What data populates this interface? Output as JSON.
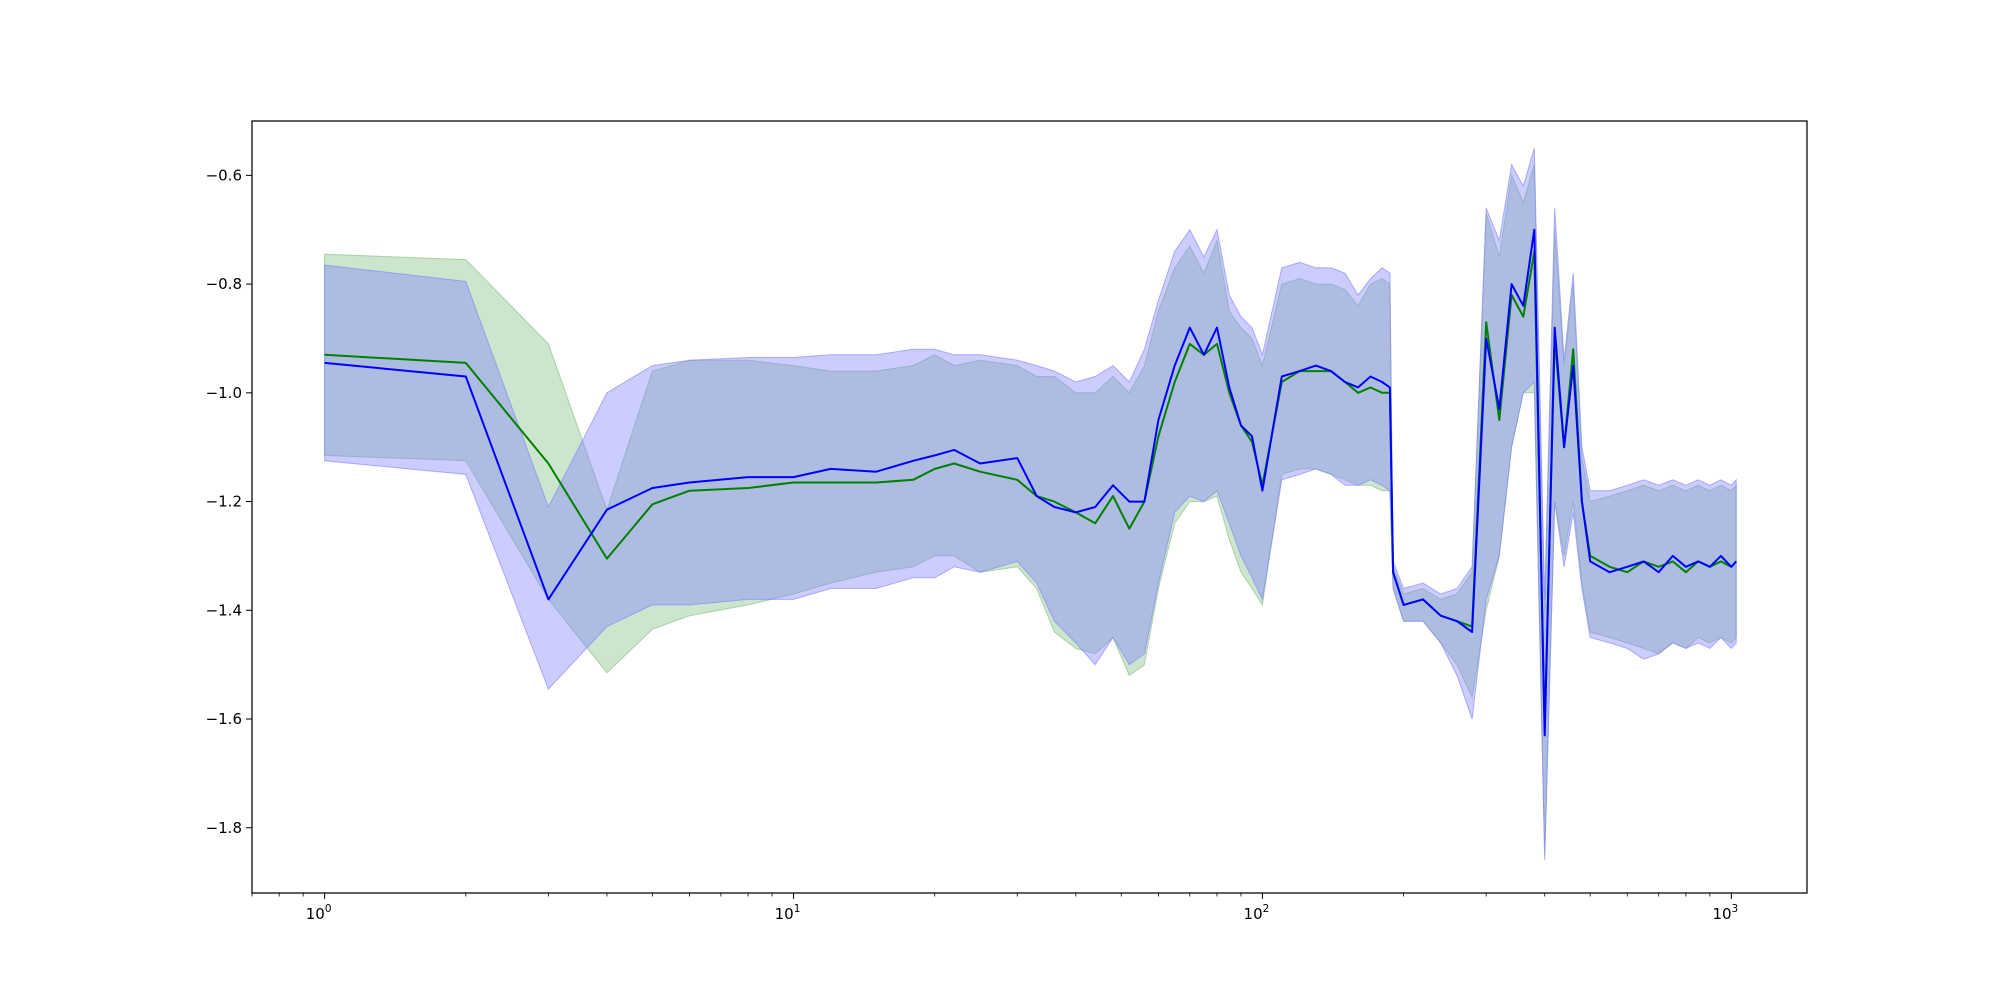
{
  "chart_data": {
    "type": "line",
    "title": "",
    "xlabel": "",
    "ylabel": "",
    "x_scale": "log",
    "xlim": [
      0.7,
      1450
    ],
    "ylim": [
      -1.92,
      -0.5
    ],
    "grid": false,
    "legend": null,
    "x_ticks": [
      {
        "value": 1,
        "base": "10",
        "exp": "0"
      },
      {
        "value": 10,
        "base": "10",
        "exp": "1"
      },
      {
        "value": 100,
        "base": "10",
        "exp": "2"
      },
      {
        "value": 1000,
        "base": "10",
        "exp": "3"
      }
    ],
    "y_ticks": [
      {
        "value": -0.6,
        "label": "−0.6"
      },
      {
        "value": -0.8,
        "label": "−0.8"
      },
      {
        "value": -1.0,
        "label": "−1.0"
      },
      {
        "value": -1.2,
        "label": "−1.2"
      },
      {
        "value": -1.4,
        "label": "−1.4"
      },
      {
        "value": -1.6,
        "label": "−1.6"
      },
      {
        "value": -1.8,
        "label": "−1.8"
      }
    ],
    "series": [
      {
        "color": "#008000",
        "band_color": "#7fbf7f",
        "band_opacity": 0.4,
        "x": [
          1,
          2,
          3,
          4,
          5,
          6,
          8,
          10,
          12,
          15,
          18,
          20,
          22,
          25,
          30,
          33,
          36,
          40,
          44,
          48,
          52,
          56,
          60,
          65,
          70,
          75,
          80,
          85,
          90,
          95,
          100,
          110,
          120,
          130,
          140,
          150,
          160,
          170,
          180,
          187,
          190,
          200,
          220,
          240,
          260,
          280,
          300,
          320,
          340,
          360,
          380,
          400,
          420,
          440,
          460,
          480,
          500,
          550,
          600,
          650,
          700,
          750,
          800,
          850,
          900,
          950,
          1000,
          1024
        ],
        "mean": [
          -0.93,
          -0.945,
          -1.13,
          -1.305,
          -1.205,
          -1.18,
          -1.175,
          -1.165,
          -1.165,
          -1.165,
          -1.16,
          -1.14,
          -1.13,
          -1.145,
          -1.16,
          -1.19,
          -1.2,
          -1.22,
          -1.24,
          -1.19,
          -1.25,
          -1.2,
          -1.08,
          -0.98,
          -0.91,
          -0.93,
          -0.91,
          -1.0,
          -1.06,
          -1.09,
          -1.17,
          -0.98,
          -0.96,
          -0.96,
          -0.96,
          -0.98,
          -1.0,
          -0.99,
          -1.0,
          -1.0,
          -1.33,
          -1.39,
          -1.38,
          -1.41,
          -1.42,
          -1.43,
          -0.87,
          -1.05,
          -0.82,
          -0.86,
          -0.74,
          -1.62,
          -0.9,
          -1.1,
          -0.92,
          -1.2,
          -1.3,
          -1.32,
          -1.33,
          -1.31,
          -1.32,
          -1.31,
          -1.33,
          -1.31,
          -1.32,
          -1.31,
          -1.32,
          -1.31
        ],
        "lower": [
          -1.115,
          -1.125,
          -1.38,
          -1.515,
          -1.435,
          -1.41,
          -1.39,
          -1.37,
          -1.35,
          -1.33,
          -1.32,
          -1.3,
          -1.3,
          -1.33,
          -1.32,
          -1.36,
          -1.44,
          -1.47,
          -1.48,
          -1.45,
          -1.52,
          -1.5,
          -1.36,
          -1.24,
          -1.2,
          -1.2,
          -1.19,
          -1.27,
          -1.33,
          -1.36,
          -1.39,
          -1.15,
          -1.14,
          -1.14,
          -1.15,
          -1.16,
          -1.17,
          -1.17,
          -1.18,
          -1.18,
          -1.36,
          -1.42,
          -1.42,
          -1.46,
          -1.5,
          -1.56,
          -1.4,
          -1.3,
          -1.1,
          -1.0,
          -1.0,
          -1.85,
          -1.2,
          -1.3,
          -1.2,
          -1.35,
          -1.44,
          -1.45,
          -1.46,
          -1.47,
          -1.48,
          -1.46,
          -1.47,
          -1.45,
          -1.46,
          -1.45,
          -1.46,
          -1.45
        ],
        "upper": [
          -0.745,
          -0.755,
          -0.91,
          -1.215,
          -0.96,
          -0.94,
          -0.94,
          -0.95,
          -0.96,
          -0.96,
          -0.95,
          -0.93,
          -0.95,
          -0.94,
          -0.95,
          -0.97,
          -0.97,
          -1.0,
          -1.0,
          -0.97,
          -1.0,
          -0.95,
          -0.85,
          -0.77,
          -0.73,
          -0.78,
          -0.72,
          -0.85,
          -0.88,
          -0.9,
          -0.95,
          -0.8,
          -0.79,
          -0.8,
          -0.8,
          -0.81,
          -0.84,
          -0.8,
          -0.79,
          -0.8,
          -1.32,
          -1.37,
          -1.36,
          -1.38,
          -1.37,
          -1.33,
          -0.67,
          -0.75,
          -0.6,
          -0.65,
          -0.58,
          -1.4,
          -0.7,
          -0.95,
          -0.8,
          -1.12,
          -1.2,
          -1.19,
          -1.18,
          -1.17,
          -1.18,
          -1.17,
          -1.18,
          -1.17,
          -1.18,
          -1.17,
          -1.18,
          -1.17
        ]
      },
      {
        "color": "#0000ff",
        "band_color": "#7f7fff",
        "band_opacity": 0.4,
        "x": [
          1,
          2,
          3,
          4,
          5,
          6,
          8,
          10,
          12,
          15,
          18,
          20,
          22,
          25,
          30,
          33,
          36,
          40,
          44,
          48,
          52,
          56,
          60,
          65,
          70,
          75,
          80,
          85,
          90,
          95,
          100,
          110,
          120,
          130,
          140,
          150,
          160,
          170,
          180,
          187,
          190,
          200,
          220,
          240,
          260,
          280,
          300,
          320,
          340,
          360,
          380,
          400,
          420,
          440,
          460,
          480,
          500,
          550,
          600,
          650,
          700,
          750,
          800,
          850,
          900,
          950,
          1000,
          1024
        ],
        "mean": [
          -0.945,
          -0.97,
          -1.38,
          -1.215,
          -1.175,
          -1.165,
          -1.155,
          -1.155,
          -1.14,
          -1.145,
          -1.125,
          -1.115,
          -1.105,
          -1.13,
          -1.12,
          -1.19,
          -1.21,
          -1.22,
          -1.21,
          -1.17,
          -1.2,
          -1.2,
          -1.05,
          -0.95,
          -0.88,
          -0.93,
          -0.88,
          -0.99,
          -1.06,
          -1.08,
          -1.18,
          -0.97,
          -0.96,
          -0.95,
          -0.96,
          -0.98,
          -0.99,
          -0.97,
          -0.98,
          -0.99,
          -1.33,
          -1.39,
          -1.38,
          -1.41,
          -1.42,
          -1.44,
          -0.9,
          -1.03,
          -0.8,
          -0.84,
          -0.7,
          -1.63,
          -0.88,
          -1.1,
          -0.95,
          -1.2,
          -1.31,
          -1.33,
          -1.32,
          -1.31,
          -1.33,
          -1.3,
          -1.32,
          -1.31,
          -1.32,
          -1.3,
          -1.32,
          -1.31
        ],
        "lower": [
          -1.125,
          -1.15,
          -1.545,
          -1.43,
          -1.39,
          -1.39,
          -1.38,
          -1.38,
          -1.36,
          -1.36,
          -1.34,
          -1.34,
          -1.32,
          -1.33,
          -1.31,
          -1.35,
          -1.42,
          -1.46,
          -1.5,
          -1.45,
          -1.5,
          -1.48,
          -1.35,
          -1.22,
          -1.19,
          -1.2,
          -1.18,
          -1.24,
          -1.3,
          -1.34,
          -1.38,
          -1.16,
          -1.15,
          -1.14,
          -1.15,
          -1.17,
          -1.17,
          -1.16,
          -1.17,
          -1.18,
          -1.36,
          -1.42,
          -1.42,
          -1.46,
          -1.52,
          -1.6,
          -1.38,
          -1.3,
          -1.1,
          -1.0,
          -0.98,
          -1.86,
          -1.2,
          -1.32,
          -1.22,
          -1.36,
          -1.45,
          -1.46,
          -1.47,
          -1.49,
          -1.48,
          -1.46,
          -1.47,
          -1.46,
          -1.47,
          -1.45,
          -1.47,
          -1.46
        ],
        "upper": [
          -0.765,
          -0.795,
          -1.21,
          -1.0,
          -0.95,
          -0.94,
          -0.935,
          -0.935,
          -0.93,
          -0.93,
          -0.92,
          -0.92,
          -0.93,
          -0.93,
          -0.94,
          -0.95,
          -0.96,
          -0.98,
          -0.97,
          -0.95,
          -0.98,
          -0.92,
          -0.83,
          -0.74,
          -0.7,
          -0.75,
          -0.7,
          -0.82,
          -0.86,
          -0.88,
          -0.93,
          -0.77,
          -0.76,
          -0.77,
          -0.77,
          -0.78,
          -0.82,
          -0.79,
          -0.77,
          -0.78,
          -1.31,
          -1.36,
          -1.35,
          -1.37,
          -1.36,
          -1.32,
          -0.66,
          -0.72,
          -0.58,
          -0.62,
          -0.55,
          -1.38,
          -0.66,
          -0.94,
          -0.78,
          -1.1,
          -1.18,
          -1.18,
          -1.17,
          -1.16,
          -1.17,
          -1.16,
          -1.17,
          -1.16,
          -1.17,
          -1.16,
          -1.17,
          -1.16
        ]
      }
    ]
  }
}
